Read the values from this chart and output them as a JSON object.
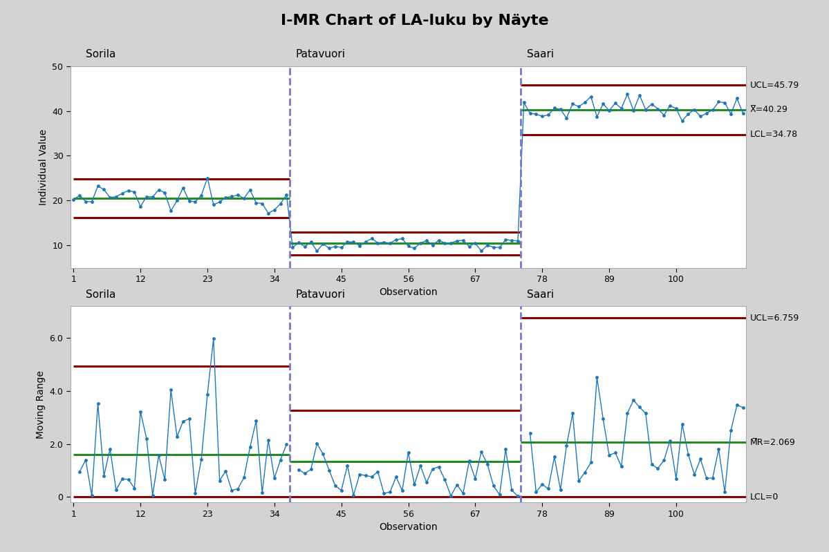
{
  "title": "I-MR Chart of LA-luku by Näyte",
  "xlabel": "Observation",
  "ylabel_top": "Individual Value",
  "ylabel_bottom": "Moving Range",
  "bg_color": "#d3d3d3",
  "plot_bg": "#ffffff",
  "sections": [
    "Sorila",
    "Patavuori",
    "Saari"
  ],
  "section_boundaries": [
    36.5,
    74.5
  ],
  "xtick_labels": [
    1,
    12,
    23,
    34,
    45,
    56,
    67,
    78,
    89,
    100
  ],
  "top_chart": {
    "sorila_mean": 20.5,
    "sorila_ucl": 24.8,
    "sorila_lcl": 16.2,
    "patavuori_mean": 10.5,
    "patavuori_ucl": 13.0,
    "patavuori_lcl": 7.8,
    "saari_mean": 40.29,
    "saari_ucl": 45.79,
    "saari_lcl": 34.78,
    "ylim": [
      5,
      50
    ],
    "yticks": [
      10,
      20,
      30,
      40,
      50
    ],
    "ann_ucl_text": "UCL=45.79",
    "ann_mean_text": "X̅=40.29",
    "ann_lcl_text": "LCL=34.78",
    "ann_ucl_y": 45.79,
    "ann_mean_y": 40.29,
    "ann_lcl_y": 34.78
  },
  "bottom_chart": {
    "sorila_mean": 1.6,
    "sorila_ucl": 4.95,
    "sorila_lcl": 0.0,
    "patavuori_mean": 1.35,
    "patavuori_ucl": 3.27,
    "patavuori_lcl": 0.0,
    "saari_mean": 2.069,
    "saari_ucl": 6.759,
    "saari_lcl": 0.0,
    "ylim": [
      -0.2,
      7.2
    ],
    "yticks": [
      0.0,
      2.0,
      4.0,
      6.0
    ],
    "ann_ucl_text": "UCL=6.759",
    "ann_mean_text": "M̅R=2.069",
    "ann_lcl_text": "LCL=0",
    "ann_ucl_y": 6.759,
    "ann_mean_y": 2.069,
    "ann_lcl_y": 0.0
  },
  "line_color": "#1f77b4",
  "mean_line_color": "#228B22",
  "ucl_lcl_color": "#8B0000",
  "divider_color": "#7878c8",
  "marker_size": 3.5,
  "line_width": 1.0,
  "n_sorila": 36,
  "n_patavuori": 38,
  "n_saari": 37,
  "total_obs": 111
}
